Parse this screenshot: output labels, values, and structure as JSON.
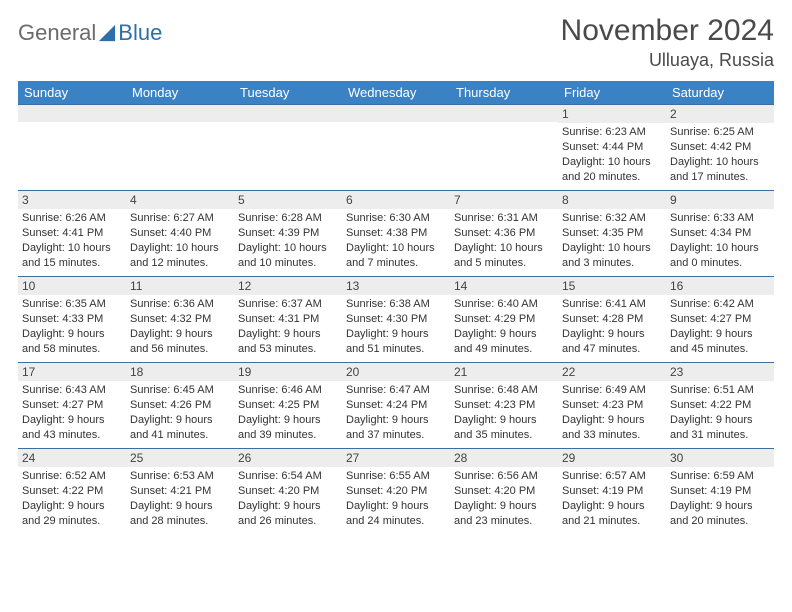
{
  "brand": {
    "part1": "General",
    "part2": "Blue"
  },
  "title": "November 2024",
  "location": "Ulluaya, Russia",
  "colors": {
    "header_bg": "#3b82c4",
    "header_text": "#ffffff",
    "cell_border": "#3b6fa0",
    "daynum_bg": "#ededed",
    "text": "#333333",
    "brand_gray": "#6b6b6b",
    "brand_blue": "#2f6fa8"
  },
  "weekdays": [
    "Sunday",
    "Monday",
    "Tuesday",
    "Wednesday",
    "Thursday",
    "Friday",
    "Saturday"
  ],
  "weeks": [
    [
      {
        "n": "",
        "sr": "",
        "ss": "",
        "dl": ""
      },
      {
        "n": "",
        "sr": "",
        "ss": "",
        "dl": ""
      },
      {
        "n": "",
        "sr": "",
        "ss": "",
        "dl": ""
      },
      {
        "n": "",
        "sr": "",
        "ss": "",
        "dl": ""
      },
      {
        "n": "",
        "sr": "",
        "ss": "",
        "dl": ""
      },
      {
        "n": "1",
        "sr": "Sunrise: 6:23 AM",
        "ss": "Sunset: 4:44 PM",
        "dl": "Daylight: 10 hours and 20 minutes."
      },
      {
        "n": "2",
        "sr": "Sunrise: 6:25 AM",
        "ss": "Sunset: 4:42 PM",
        "dl": "Daylight: 10 hours and 17 minutes."
      }
    ],
    [
      {
        "n": "3",
        "sr": "Sunrise: 6:26 AM",
        "ss": "Sunset: 4:41 PM",
        "dl": "Daylight: 10 hours and 15 minutes."
      },
      {
        "n": "4",
        "sr": "Sunrise: 6:27 AM",
        "ss": "Sunset: 4:40 PM",
        "dl": "Daylight: 10 hours and 12 minutes."
      },
      {
        "n": "5",
        "sr": "Sunrise: 6:28 AM",
        "ss": "Sunset: 4:39 PM",
        "dl": "Daylight: 10 hours and 10 minutes."
      },
      {
        "n": "6",
        "sr": "Sunrise: 6:30 AM",
        "ss": "Sunset: 4:38 PM",
        "dl": "Daylight: 10 hours and 7 minutes."
      },
      {
        "n": "7",
        "sr": "Sunrise: 6:31 AM",
        "ss": "Sunset: 4:36 PM",
        "dl": "Daylight: 10 hours and 5 minutes."
      },
      {
        "n": "8",
        "sr": "Sunrise: 6:32 AM",
        "ss": "Sunset: 4:35 PM",
        "dl": "Daylight: 10 hours and 3 minutes."
      },
      {
        "n": "9",
        "sr": "Sunrise: 6:33 AM",
        "ss": "Sunset: 4:34 PM",
        "dl": "Daylight: 10 hours and 0 minutes."
      }
    ],
    [
      {
        "n": "10",
        "sr": "Sunrise: 6:35 AM",
        "ss": "Sunset: 4:33 PM",
        "dl": "Daylight: 9 hours and 58 minutes."
      },
      {
        "n": "11",
        "sr": "Sunrise: 6:36 AM",
        "ss": "Sunset: 4:32 PM",
        "dl": "Daylight: 9 hours and 56 minutes."
      },
      {
        "n": "12",
        "sr": "Sunrise: 6:37 AM",
        "ss": "Sunset: 4:31 PM",
        "dl": "Daylight: 9 hours and 53 minutes."
      },
      {
        "n": "13",
        "sr": "Sunrise: 6:38 AM",
        "ss": "Sunset: 4:30 PM",
        "dl": "Daylight: 9 hours and 51 minutes."
      },
      {
        "n": "14",
        "sr": "Sunrise: 6:40 AM",
        "ss": "Sunset: 4:29 PM",
        "dl": "Daylight: 9 hours and 49 minutes."
      },
      {
        "n": "15",
        "sr": "Sunrise: 6:41 AM",
        "ss": "Sunset: 4:28 PM",
        "dl": "Daylight: 9 hours and 47 minutes."
      },
      {
        "n": "16",
        "sr": "Sunrise: 6:42 AM",
        "ss": "Sunset: 4:27 PM",
        "dl": "Daylight: 9 hours and 45 minutes."
      }
    ],
    [
      {
        "n": "17",
        "sr": "Sunrise: 6:43 AM",
        "ss": "Sunset: 4:27 PM",
        "dl": "Daylight: 9 hours and 43 minutes."
      },
      {
        "n": "18",
        "sr": "Sunrise: 6:45 AM",
        "ss": "Sunset: 4:26 PM",
        "dl": "Daylight: 9 hours and 41 minutes."
      },
      {
        "n": "19",
        "sr": "Sunrise: 6:46 AM",
        "ss": "Sunset: 4:25 PM",
        "dl": "Daylight: 9 hours and 39 minutes."
      },
      {
        "n": "20",
        "sr": "Sunrise: 6:47 AM",
        "ss": "Sunset: 4:24 PM",
        "dl": "Daylight: 9 hours and 37 minutes."
      },
      {
        "n": "21",
        "sr": "Sunrise: 6:48 AM",
        "ss": "Sunset: 4:23 PM",
        "dl": "Daylight: 9 hours and 35 minutes."
      },
      {
        "n": "22",
        "sr": "Sunrise: 6:49 AM",
        "ss": "Sunset: 4:23 PM",
        "dl": "Daylight: 9 hours and 33 minutes."
      },
      {
        "n": "23",
        "sr": "Sunrise: 6:51 AM",
        "ss": "Sunset: 4:22 PM",
        "dl": "Daylight: 9 hours and 31 minutes."
      }
    ],
    [
      {
        "n": "24",
        "sr": "Sunrise: 6:52 AM",
        "ss": "Sunset: 4:22 PM",
        "dl": "Daylight: 9 hours and 29 minutes."
      },
      {
        "n": "25",
        "sr": "Sunrise: 6:53 AM",
        "ss": "Sunset: 4:21 PM",
        "dl": "Daylight: 9 hours and 28 minutes."
      },
      {
        "n": "26",
        "sr": "Sunrise: 6:54 AM",
        "ss": "Sunset: 4:20 PM",
        "dl": "Daylight: 9 hours and 26 minutes."
      },
      {
        "n": "27",
        "sr": "Sunrise: 6:55 AM",
        "ss": "Sunset: 4:20 PM",
        "dl": "Daylight: 9 hours and 24 minutes."
      },
      {
        "n": "28",
        "sr": "Sunrise: 6:56 AM",
        "ss": "Sunset: 4:20 PM",
        "dl": "Daylight: 9 hours and 23 minutes."
      },
      {
        "n": "29",
        "sr": "Sunrise: 6:57 AM",
        "ss": "Sunset: 4:19 PM",
        "dl": "Daylight: 9 hours and 21 minutes."
      },
      {
        "n": "30",
        "sr": "Sunrise: 6:59 AM",
        "ss": "Sunset: 4:19 PM",
        "dl": "Daylight: 9 hours and 20 minutes."
      }
    ]
  ]
}
